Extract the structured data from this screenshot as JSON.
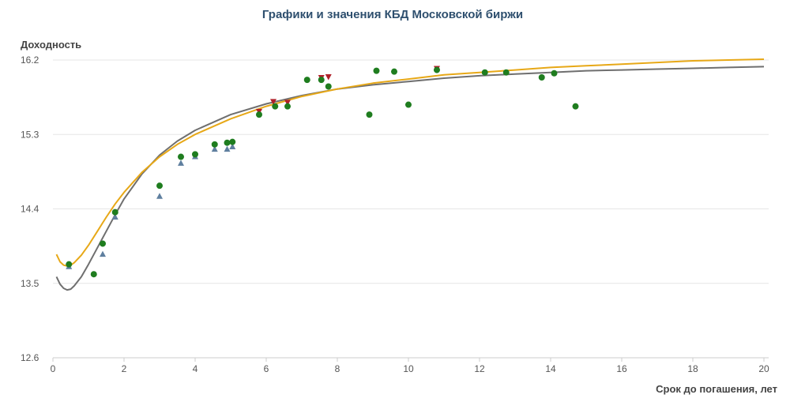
{
  "colors": {
    "title": "#2e4f6e",
    "curve_gray": "#6f6f6f",
    "curve_yellow": "#e7a817",
    "marker_green": "#1f7d1f",
    "marker_blue": "#5f7f9f",
    "marker_red": "#b0202a",
    "grid": "#e6e6e6",
    "axis": "#cccccc"
  },
  "chart_data": {
    "type": "scatter",
    "title": "Графики и значения КБД Московской биржи",
    "xlabel": "Срок до погашения, лет",
    "ylabel": "Доходность",
    "xlim": [
      0,
      20
    ],
    "ylim": [
      12.6,
      16.2
    ],
    "x_ticks": [
      0,
      2,
      4,
      6,
      8,
      10,
      12,
      14,
      16,
      18,
      20
    ],
    "y_ticks": [
      12.6,
      13.5,
      14.4,
      15.3,
      16.2
    ],
    "y_tick_labels": [
      "12.6",
      "13.5",
      "14.4",
      "15.3",
      "16.2"
    ],
    "grid": "horizontal",
    "legend": "none",
    "series": [
      {
        "kind": "line",
        "color": "#6f6f6f",
        "x": [
          0.1,
          0.2,
          0.3,
          0.4,
          0.5,
          0.6,
          0.8,
          1.0,
          1.25,
          1.5,
          1.75,
          2.0,
          2.5,
          3.0,
          3.5,
          4.0,
          5.0,
          6.0,
          7.0,
          8.0,
          9.0,
          10.0,
          11.0,
          12.0,
          13.0,
          14.0,
          15.0,
          16.0,
          17.0,
          18.0,
          19.0,
          20.0
        ],
        "y": [
          13.58,
          13.49,
          13.44,
          13.42,
          13.43,
          13.47,
          13.58,
          13.73,
          13.93,
          14.13,
          14.33,
          14.52,
          14.82,
          15.05,
          15.22,
          15.35,
          15.54,
          15.67,
          15.77,
          15.85,
          15.9,
          15.94,
          15.98,
          16.01,
          16.03,
          16.05,
          16.07,
          16.08,
          16.09,
          16.1,
          16.11,
          16.12
        ]
      },
      {
        "kind": "line",
        "color": "#e7a817",
        "x": [
          0.1,
          0.2,
          0.3,
          0.4,
          0.5,
          0.6,
          0.8,
          1.0,
          1.25,
          1.5,
          1.75,
          2.0,
          2.5,
          3.0,
          3.5,
          4.0,
          5.0,
          6.0,
          7.0,
          8.0,
          9.0,
          10.0,
          11.0,
          12.0,
          13.0,
          14.0,
          15.0,
          16.0,
          17.0,
          18.0,
          19.0,
          20.0
        ],
        "y": [
          13.85,
          13.76,
          13.72,
          13.71,
          13.72,
          13.75,
          13.84,
          13.96,
          14.13,
          14.3,
          14.46,
          14.6,
          14.84,
          15.03,
          15.18,
          15.3,
          15.49,
          15.64,
          15.76,
          15.85,
          15.92,
          15.97,
          16.02,
          16.05,
          16.08,
          16.11,
          16.13,
          16.15,
          16.17,
          16.19,
          16.2,
          16.21
        ]
      },
      {
        "kind": "markers",
        "shape": "triangle-up",
        "color": "#5f7f9f",
        "x": [
          0.45,
          1.4,
          1.75,
          3.0,
          3.6,
          4.0,
          4.55,
          4.9,
          5.05
        ],
        "y": [
          13.7,
          13.85,
          14.3,
          14.55,
          14.95,
          15.03,
          15.12,
          15.12,
          15.15
        ]
      },
      {
        "kind": "markers",
        "shape": "triangle-down",
        "color": "#b0202a",
        "x": [
          5.8,
          6.2,
          6.6,
          7.55,
          7.75,
          10.8
        ],
        "y": [
          15.58,
          15.7,
          15.69,
          15.99,
          16.0,
          16.1
        ]
      },
      {
        "kind": "markers",
        "shape": "circle",
        "color": "#1f7d1f",
        "x": [
          0.45,
          1.15,
          1.4,
          1.75,
          3.0,
          3.6,
          4.0,
          4.55,
          4.9,
          5.05,
          5.8,
          6.25,
          6.6,
          7.15,
          7.55,
          7.75,
          8.9,
          9.1,
          9.6,
          10.0,
          10.8,
          12.15,
          12.75,
          13.75,
          14.1,
          14.7
        ],
        "y": [
          13.73,
          13.61,
          13.98,
          14.36,
          14.68,
          15.03,
          15.06,
          15.18,
          15.2,
          15.21,
          15.54,
          15.64,
          15.64,
          15.96,
          15.96,
          15.88,
          15.54,
          16.07,
          16.06,
          15.66,
          16.08,
          16.05,
          16.05,
          15.99,
          16.04,
          15.64
        ]
      }
    ]
  }
}
